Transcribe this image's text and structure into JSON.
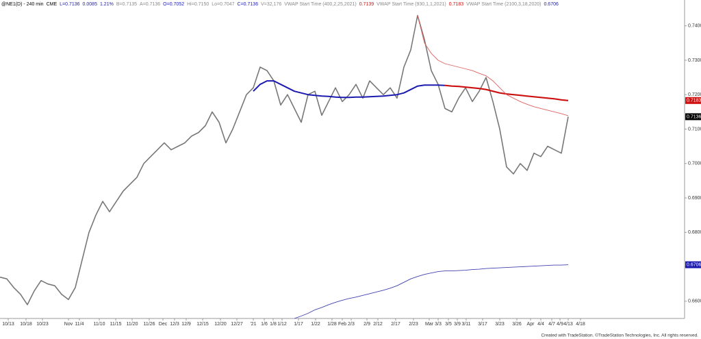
{
  "chart_data": {
    "type": "line",
    "header": [
      {
        "text": "@NE1(D) - 240 min",
        "color": "#000000"
      },
      {
        "text": "CME",
        "color": "#000000"
      },
      {
        "text": "L=0.7136",
        "color": "#1a1ab0"
      },
      {
        "text": "0.0085",
        "color": "#1a1ab0"
      },
      {
        "text": "1.21%",
        "color": "#1a1ab0"
      },
      {
        "text": "B=0.7135",
        "color": "#888888"
      },
      {
        "text": "A=0.7136",
        "color": "#888888"
      },
      {
        "text": "O=0.7052",
        "color": "#1a1ab0"
      },
      {
        "text": "Hi=0.7150",
        "color": "#888888"
      },
      {
        "text": "Lo=0.7047",
        "color": "#888888"
      },
      {
        "text": "C=0.7136",
        "color": "#1a1ab0"
      },
      {
        "text": "V=32,176",
        "color": "#888888"
      },
      {
        "text": "VWAP Start Time (400,2,25,2021)",
        "color": "#888888"
      },
      {
        "text": "0.7139",
        "color": "#d01010"
      },
      {
        "text": "VWAP Start Time (930,1,1,2021)",
        "color": "#888888"
      },
      {
        "text": "0.7183",
        "color": "#d01010"
      },
      {
        "text": "VWAP Start Time (2100,3,18,2020)",
        "color": "#888888"
      },
      {
        "text": "0.6706",
        "color": "#1a1ab0"
      }
    ],
    "footer": "Created with TradeStation. ©TradeStation Technologies, Inc. All rights reserved.",
    "xlim": [
      0,
      1000
    ],
    "ylim": [
      0.655,
      0.7475
    ],
    "xticks": [
      {
        "value": 12,
        "label": "10/13"
      },
      {
        "value": 38,
        "label": "10/18"
      },
      {
        "value": 62,
        "label": "10/23"
      },
      {
        "value": 100,
        "label": "Nov"
      },
      {
        "value": 116,
        "label": "11/4"
      },
      {
        "value": 145,
        "label": "11/10"
      },
      {
        "value": 169,
        "label": "11/15"
      },
      {
        "value": 193,
        "label": "11/20"
      },
      {
        "value": 218,
        "label": "11/26"
      },
      {
        "value": 238,
        "label": "Dec"
      },
      {
        "value": 255,
        "label": "12/3"
      },
      {
        "value": 272,
        "label": "12/9"
      },
      {
        "value": 296,
        "label": "12/15"
      },
      {
        "value": 322,
        "label": "12/20"
      },
      {
        "value": 346,
        "label": "12/27"
      },
      {
        "value": 370,
        "label": "'21"
      },
      {
        "value": 386,
        "label": "1/6"
      },
      {
        "value": 399,
        "label": "1/8"
      },
      {
        "value": 412,
        "label": "1/12"
      },
      {
        "value": 436,
        "label": "1/17"
      },
      {
        "value": 461,
        "label": "1/22"
      },
      {
        "value": 485,
        "label": "1/28"
      },
      {
        "value": 500,
        "label": "Feb"
      },
      {
        "value": 513,
        "label": "2/3"
      },
      {
        "value": 536,
        "label": "2/9"
      },
      {
        "value": 552,
        "label": "2/12"
      },
      {
        "value": 578,
        "label": "2/17"
      },
      {
        "value": 604,
        "label": "2/23"
      },
      {
        "value": 627,
        "label": "Mar"
      },
      {
        "value": 640,
        "label": "3/3"
      },
      {
        "value": 655,
        "label": "3/5"
      },
      {
        "value": 668,
        "label": "3/9"
      },
      {
        "value": 681,
        "label": "3/11"
      },
      {
        "value": 705,
        "label": "3/17"
      },
      {
        "value": 730,
        "label": "3/23"
      },
      {
        "value": 755,
        "label": "3/26"
      },
      {
        "value": 775,
        "label": "Apr"
      },
      {
        "value": 790,
        "label": "4/4"
      },
      {
        "value": 806,
        "label": "4/7"
      },
      {
        "value": 818,
        "label": "4/9"
      },
      {
        "value": 830,
        "label": "4/13"
      },
      {
        "value": 848,
        "label": "4/18"
      }
    ],
    "yticks": [
      {
        "value": 0.66,
        "label": "0.6600"
      },
      {
        "value": 0.67,
        "label": "0.6700"
      },
      {
        "value": 0.68,
        "label": "0.6800"
      },
      {
        "value": 0.69,
        "label": "0.6900"
      },
      {
        "value": 0.7,
        "label": "0.7000"
      },
      {
        "value": 0.71,
        "label": "0.7100"
      },
      {
        "value": 0.72,
        "label": "0.7200"
      },
      {
        "value": 0.73,
        "label": "0.7300"
      },
      {
        "value": 0.74,
        "label": "0.7400"
      }
    ],
    "series": [
      {
        "color": "#777777",
        "width": 1.6,
        "x": [
          0,
          10,
          20,
          30,
          40,
          50,
          60,
          70,
          80,
          90,
          100,
          110,
          120,
          130,
          140,
          150,
          160,
          170,
          180,
          190,
          200,
          210,
          220,
          230,
          240,
          250,
          260,
          270,
          280,
          290,
          300,
          310,
          320,
          330,
          340,
          350,
          360,
          370,
          380,
          390,
          400,
          410,
          420,
          430,
          440,
          450,
          460,
          470,
          480,
          490,
          500,
          510,
          520,
          530,
          540,
          550,
          560,
          570,
          580,
          590,
          600,
          610,
          620,
          630,
          640,
          650,
          660,
          670,
          680,
          690,
          700,
          710,
          720,
          730,
          740,
          750,
          760,
          770,
          780,
          790,
          800,
          810,
          820,
          830
        ],
        "values": [
          0.667,
          0.6665,
          0.664,
          0.662,
          0.659,
          0.663,
          0.666,
          0.665,
          0.6645,
          0.662,
          0.6605,
          0.664,
          0.672,
          0.68,
          0.685,
          0.689,
          0.686,
          0.689,
          0.692,
          0.694,
          0.696,
          0.7,
          0.702,
          0.704,
          0.706,
          0.704,
          0.705,
          0.706,
          0.708,
          0.709,
          0.711,
          0.715,
          0.712,
          0.706,
          0.71,
          0.715,
          0.72,
          0.722,
          0.728,
          0.727,
          0.724,
          0.717,
          0.72,
          0.716,
          0.712,
          0.72,
          0.721,
          0.714,
          0.718,
          0.722,
          0.718,
          0.72,
          0.723,
          0.719,
          0.724,
          0.722,
          0.72,
          0.722,
          0.719,
          0.728,
          0.733,
          0.743,
          0.736,
          0.727,
          0.723,
          0.716,
          0.715,
          0.719,
          0.722,
          0.718,
          0.721,
          0.725,
          0.718,
          0.71,
          0.699,
          0.697,
          0.7,
          0.698,
          0.703,
          0.702,
          0.705,
          0.704,
          0.703,
          0.7136
        ]
      },
      {
        "color": "#1a1ab0",
        "width": 2,
        "x": [
          370,
          380,
          390,
          400,
          410,
          420,
          430,
          440,
          450,
          460,
          470,
          480,
          490,
          500,
          510,
          520,
          530,
          540,
          550,
          560,
          570,
          580,
          590,
          600,
          610,
          620,
          630,
          640,
          650
        ],
        "values": [
          0.721,
          0.723,
          0.724,
          0.724,
          0.723,
          0.722,
          0.721,
          0.7205,
          0.72,
          0.7198,
          0.7196,
          0.7195,
          0.7193,
          0.7192,
          0.7192,
          0.7193,
          0.7193,
          0.7194,
          0.7195,
          0.7196,
          0.7198,
          0.72,
          0.7205,
          0.7215,
          0.7225,
          0.7228,
          0.7228,
          0.7228,
          0.7227
        ]
      },
      {
        "color": "#cc1010",
        "width": 2.2,
        "x": [
          650,
          660,
          670,
          680,
          690,
          700,
          710,
          720,
          730,
          740,
          750,
          760,
          770,
          780,
          790,
          800,
          810,
          820,
          830
        ],
        "values": [
          0.7227,
          0.7225,
          0.7224,
          0.7222,
          0.722,
          0.7218,
          0.7215,
          0.721,
          0.7205,
          0.7202,
          0.72,
          0.7198,
          0.7196,
          0.7194,
          0.7192,
          0.719,
          0.7188,
          0.7185,
          0.7183
        ]
      },
      {
        "color": "#e06060",
        "width": 0.9,
        "x": [
          610,
          620,
          630,
          640,
          650,
          660,
          670,
          680,
          690,
          700,
          710,
          720,
          730,
          740,
          750,
          760,
          770,
          780,
          790,
          800,
          810,
          820,
          830
        ],
        "values": [
          0.743,
          0.735,
          0.732,
          0.73,
          0.729,
          0.7285,
          0.728,
          0.7275,
          0.727,
          0.7262,
          0.7255,
          0.724,
          0.722,
          0.72,
          0.719,
          0.718,
          0.7172,
          0.7165,
          0.716,
          0.7155,
          0.715,
          0.7145,
          0.7139
        ]
      },
      {
        "color": "#4040b0",
        "width": 0.9,
        "x": [
          430,
          440,
          450,
          460,
          470,
          480,
          490,
          500,
          510,
          520,
          530,
          540,
          550,
          560,
          570,
          580,
          590,
          600,
          610,
          620,
          630,
          640,
          650,
          660,
          670,
          680,
          690,
          700,
          710,
          720,
          730,
          740,
          750,
          760,
          770,
          780,
          790,
          800,
          810,
          820,
          830
        ],
        "values": [
          0.655,
          0.6557,
          0.6565,
          0.6575,
          0.6582,
          0.659,
          0.6597,
          0.6603,
          0.6608,
          0.6612,
          0.6617,
          0.6622,
          0.6627,
          0.6632,
          0.6638,
          0.6645,
          0.6655,
          0.6665,
          0.6672,
          0.6678,
          0.6682,
          0.6686,
          0.6688,
          0.6688,
          0.6689,
          0.669,
          0.6692,
          0.6693,
          0.6695,
          0.6696,
          0.6697,
          0.6698,
          0.6699,
          0.67,
          0.6701,
          0.6702,
          0.6703,
          0.6704,
          0.6705,
          0.6705,
          0.6706
        ]
      }
    ],
    "markers": [
      {
        "value": 0.7183,
        "label": "0.7183",
        "color": "#d01010"
      },
      {
        "value": 0.7136,
        "label": "0.7136",
        "color": "#000000"
      },
      {
        "value": 0.6706,
        "label": "0.6706",
        "color": "#1a1ab0"
      }
    ]
  }
}
